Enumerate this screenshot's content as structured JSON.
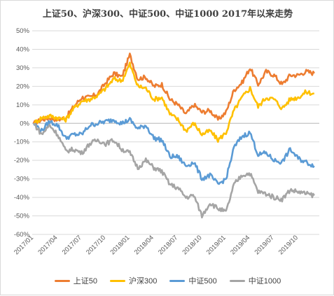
{
  "chart_data": {
    "type": "line",
    "title": "上证50、沪深300、中证500、中证1000  2017年以来走势",
    "x_ticks": [
      "2017/01",
      "2017/04",
      "2017/07",
      "2017/10",
      "2018/01",
      "2018/04",
      "2018/07",
      "2018/10",
      "2019/01",
      "2019/04",
      "2019/07",
      "2019/10"
    ],
    "y_ticks": [
      "50%",
      "40%",
      "30%",
      "20%",
      "10%",
      "0%",
      "-10%",
      "-20%",
      "-30%",
      "-40%",
      "-50%",
      "-60%"
    ],
    "ylim": [
      -0.6,
      0.5
    ],
    "grid": true,
    "legend_position": "bottom",
    "series": [
      {
        "name": "上证50",
        "color": "#ED7D31",
        "values": [
          [
            "2017/01",
            0.0
          ],
          [
            "2017/02",
            0.02
          ],
          [
            "2017/03",
            0.03
          ],
          [
            "2017/04",
            0.02
          ],
          [
            "2017/05",
            0.03
          ],
          [
            "2017/06",
            0.09
          ],
          [
            "2017/07",
            0.14
          ],
          [
            "2017/08",
            0.14
          ],
          [
            "2017/09",
            0.16
          ],
          [
            "2017/10",
            0.22
          ],
          [
            "2017/11",
            0.27
          ],
          [
            "2017/12",
            0.25
          ],
          [
            "2018/01",
            0.37
          ],
          [
            "2018/02",
            0.24
          ],
          [
            "2018/03",
            0.25
          ],
          [
            "2018/04",
            0.2
          ],
          [
            "2018/05",
            0.21
          ],
          [
            "2018/06",
            0.13
          ],
          [
            "2018/07",
            0.1
          ],
          [
            "2018/08",
            0.05
          ],
          [
            "2018/09",
            0.1
          ],
          [
            "2018/10",
            0.06
          ],
          [
            "2018/11",
            0.07
          ],
          [
            "2018/12",
            0.02
          ],
          [
            "2019/01",
            0.06
          ],
          [
            "2019/02",
            0.18
          ],
          [
            "2019/03",
            0.22
          ],
          [
            "2019/04",
            0.3
          ],
          [
            "2019/05",
            0.21
          ],
          [
            "2019/06",
            0.28
          ],
          [
            "2019/07",
            0.26
          ],
          [
            "2019/08",
            0.21
          ],
          [
            "2019/09",
            0.26
          ],
          [
            "2019/10",
            0.26
          ],
          [
            "2019/11",
            0.28
          ],
          [
            "2019/12",
            0.27
          ]
        ]
      },
      {
        "name": "沪深300",
        "color": "#FFC000",
        "values": [
          [
            "2017/01",
            0.0
          ],
          [
            "2017/02",
            0.03
          ],
          [
            "2017/03",
            0.04
          ],
          [
            "2017/04",
            0.03
          ],
          [
            "2017/05",
            0.02
          ],
          [
            "2017/06",
            0.08
          ],
          [
            "2017/07",
            0.12
          ],
          [
            "2017/08",
            0.13
          ],
          [
            "2017/09",
            0.15
          ],
          [
            "2017/10",
            0.19
          ],
          [
            "2017/11",
            0.24
          ],
          [
            "2017/12",
            0.23
          ],
          [
            "2018/01",
            0.32
          ],
          [
            "2018/02",
            0.2
          ],
          [
            "2018/03",
            0.19
          ],
          [
            "2018/04",
            0.13
          ],
          [
            "2018/05",
            0.14
          ],
          [
            "2018/06",
            0.05
          ],
          [
            "2018/07",
            0.02
          ],
          [
            "2018/08",
            -0.04
          ],
          [
            "2018/09",
            0.0
          ],
          [
            "2018/10",
            -0.06
          ],
          [
            "2018/11",
            -0.04
          ],
          [
            "2018/12",
            -0.09
          ],
          [
            "2019/01",
            -0.05
          ],
          [
            "2019/02",
            0.07
          ],
          [
            "2019/03",
            0.14
          ],
          [
            "2019/04",
            0.19
          ],
          [
            "2019/05",
            0.09
          ],
          [
            "2019/06",
            0.14
          ],
          [
            "2019/07",
            0.13
          ],
          [
            "2019/08",
            0.08
          ],
          [
            "2019/09",
            0.13
          ],
          [
            "2019/10",
            0.14
          ],
          [
            "2019/11",
            0.17
          ],
          [
            "2019/12",
            0.16
          ]
        ]
      },
      {
        "name": "中证500",
        "color": "#5B9BD5",
        "values": [
          [
            "2017/01",
            0.0
          ],
          [
            "2017/02",
            -0.04
          ],
          [
            "2017/03",
            0.01
          ],
          [
            "2017/04",
            -0.01
          ],
          [
            "2017/05",
            -0.08
          ],
          [
            "2017/06",
            -0.06
          ],
          [
            "2017/07",
            -0.06
          ],
          [
            "2017/08",
            -0.01
          ],
          [
            "2017/09",
            0.0
          ],
          [
            "2017/10",
            0.01
          ],
          [
            "2017/11",
            0.02
          ],
          [
            "2017/12",
            0.0
          ],
          [
            "2018/01",
            0.02
          ],
          [
            "2018/02",
            -0.03
          ],
          [
            "2018/03",
            -0.01
          ],
          [
            "2018/04",
            -0.08
          ],
          [
            "2018/05",
            -0.09
          ],
          [
            "2018/06",
            -0.18
          ],
          [
            "2018/07",
            -0.18
          ],
          [
            "2018/08",
            -0.23
          ],
          [
            "2018/09",
            -0.21
          ],
          [
            "2018/10",
            -0.3
          ],
          [
            "2018/11",
            -0.28
          ],
          [
            "2018/12",
            -0.33
          ],
          [
            "2019/01",
            -0.3
          ],
          [
            "2019/02",
            -0.13
          ],
          [
            "2019/03",
            -0.07
          ],
          [
            "2019/04",
            -0.05
          ],
          [
            "2019/05",
            -0.17
          ],
          [
            "2019/06",
            -0.16
          ],
          [
            "2019/07",
            -0.2
          ],
          [
            "2019/08",
            -0.21
          ],
          [
            "2019/09",
            -0.14
          ],
          [
            "2019/10",
            -0.19
          ],
          [
            "2019/11",
            -0.21
          ],
          [
            "2019/12",
            -0.23
          ]
        ]
      },
      {
        "name": "中证1000",
        "color": "#A5A5A5",
        "values": [
          [
            "2017/01",
            0.0
          ],
          [
            "2017/02",
            -0.06
          ],
          [
            "2017/03",
            -0.01
          ],
          [
            "2017/04",
            -0.06
          ],
          [
            "2017/05",
            -0.15
          ],
          [
            "2017/06",
            -0.14
          ],
          [
            "2017/07",
            -0.16
          ],
          [
            "2017/08",
            -0.11
          ],
          [
            "2017/09",
            -0.09
          ],
          [
            "2017/10",
            -0.11
          ],
          [
            "2017/11",
            -0.09
          ],
          [
            "2017/12",
            -0.14
          ],
          [
            "2018/01",
            -0.16
          ],
          [
            "2018/02",
            -0.24
          ],
          [
            "2018/03",
            -0.2
          ],
          [
            "2018/04",
            -0.24
          ],
          [
            "2018/05",
            -0.26
          ],
          [
            "2018/06",
            -0.33
          ],
          [
            "2018/07",
            -0.35
          ],
          [
            "2018/08",
            -0.4
          ],
          [
            "2018/09",
            -0.39
          ],
          [
            "2018/10",
            -0.5
          ],
          [
            "2018/11",
            -0.43
          ],
          [
            "2018/12",
            -0.46
          ],
          [
            "2019/01",
            -0.48
          ],
          [
            "2019/02",
            -0.33
          ],
          [
            "2019/03",
            -0.28
          ],
          [
            "2019/04",
            -0.27
          ],
          [
            "2019/05",
            -0.37
          ],
          [
            "2019/06",
            -0.38
          ],
          [
            "2019/07",
            -0.4
          ],
          [
            "2019/08",
            -0.41
          ],
          [
            "2019/09",
            -0.36
          ],
          [
            "2019/10",
            -0.37
          ],
          [
            "2019/11",
            -0.38
          ],
          [
            "2019/12",
            -0.39
          ]
        ]
      }
    ]
  }
}
